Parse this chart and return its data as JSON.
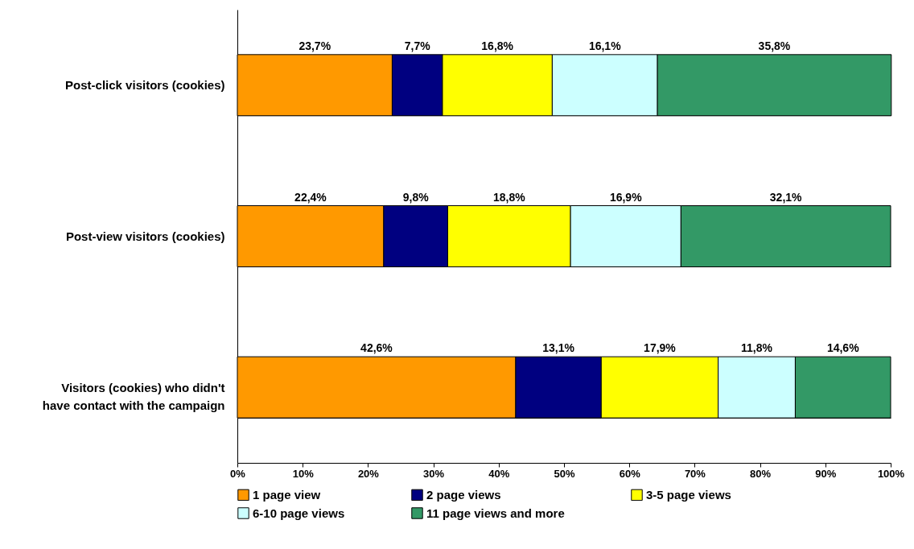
{
  "chart_data": {
    "type": "bar",
    "orientation": "horizontal",
    "stacked": true,
    "categories": [
      "Post-click visitors (cookies)",
      "Post-view visitors (cookies)",
      "Visitors (cookies) who didn't have contact with the campaign"
    ],
    "series": [
      {
        "name": "1 page view",
        "color": "#ff9900",
        "values": [
          23.7,
          22.4,
          42.6
        ],
        "value_labels": [
          "23,7%",
          "22,4%",
          "42,6%"
        ]
      },
      {
        "name": "2 page views",
        "color": "#000080",
        "values": [
          7.7,
          9.8,
          13.1
        ],
        "value_labels": [
          "7,7%",
          "9,8%",
          "13,1%"
        ]
      },
      {
        "name": "3-5 page views",
        "color": "#ffff00",
        "values": [
          16.8,
          18.8,
          17.9
        ],
        "value_labels": [
          "16,8%",
          "18,8%",
          "17,9%"
        ]
      },
      {
        "name": "6-10 page views",
        "color": "#ccffff",
        "values": [
          16.1,
          16.9,
          11.8
        ],
        "value_labels": [
          "16,1%",
          "16,9%",
          "11,8%"
        ]
      },
      {
        "name": "11 page views and more",
        "color": "#339966",
        "values": [
          35.8,
          32.1,
          14.6
        ],
        "value_labels": [
          "35,8%",
          "32,1%",
          "14,6%"
        ]
      }
    ],
    "xlim": [
      0,
      100
    ],
    "xticks": [
      {
        "value": 0,
        "label": "0%"
      },
      {
        "value": 10,
        "label": "10%"
      },
      {
        "value": 20,
        "label": "20%"
      },
      {
        "value": 30,
        "label": "30%"
      },
      {
        "value": 40,
        "label": "40%"
      },
      {
        "value": 50,
        "label": "50%"
      },
      {
        "value": 60,
        "label": "60%"
      },
      {
        "value": 70,
        "label": "70%"
      },
      {
        "value": 80,
        "label": "80%"
      },
      {
        "value": 90,
        "label": "90%"
      },
      {
        "value": 100,
        "label": "100%"
      }
    ],
    "grid": "y",
    "legend": "bottom"
  }
}
